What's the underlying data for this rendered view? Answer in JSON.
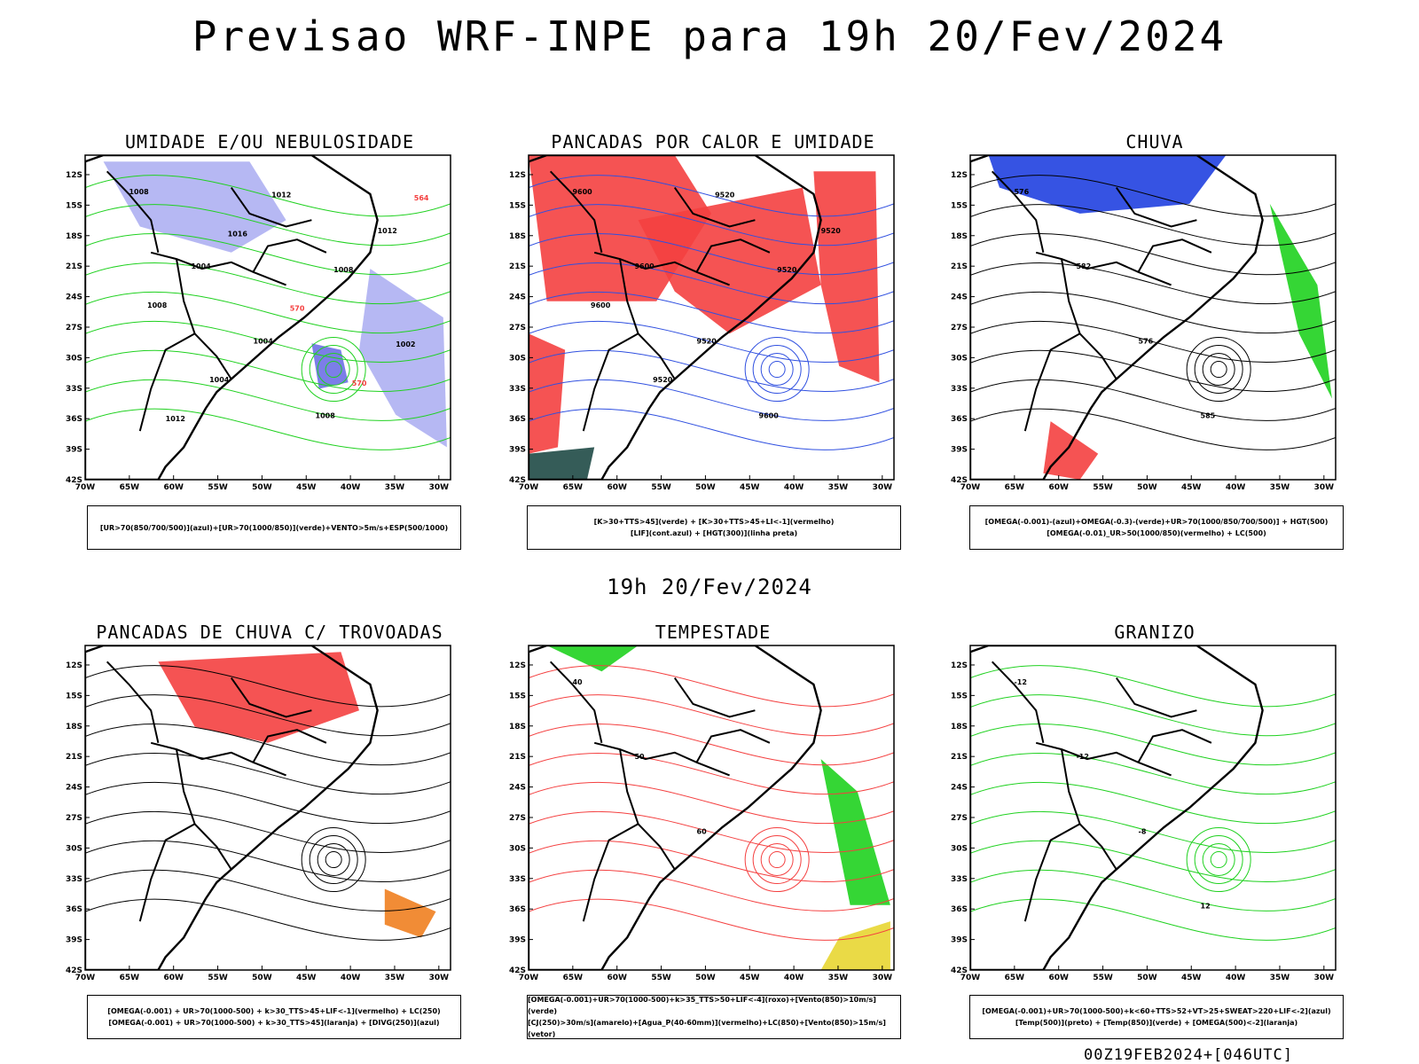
{
  "header": {
    "title": "Previsao WRF-INPE  para 19h 20/Fev/2024",
    "mid_title": "19h 20/Fev/2024",
    "footer": "00Z19FEB2024+[046UTC]"
  },
  "axes": {
    "lat_labels": [
      "12S",
      "15S",
      "18S",
      "21S",
      "24S",
      "27S",
      "30S",
      "33S",
      "36S",
      "39S",
      "42S"
    ],
    "lon_labels": [
      "70W",
      "65W",
      "60W",
      "55W",
      "50W",
      "45W",
      "40W",
      "35W",
      "30W"
    ]
  },
  "panels": [
    {
      "id": "umidade",
      "title": "UMIDADE E/OU NEBULOSIDADE",
      "legend_lines": [
        "[UR>70(850/700/500)](azul)+[UR>70(1000/850)](verde)+VENTO>5m/s+ESP(500/1000)"
      ],
      "contour_labels": [
        "1008",
        "1004",
        "1004",
        "1008",
        "1012",
        "1008",
        "1004",
        "1012",
        "1008",
        "1002",
        "1012",
        "1016",
        "570",
        "570",
        "564"
      ]
    },
    {
      "id": "pancadas-calor",
      "title": "PANCADAS POR CALOR E UMIDADE",
      "legend_lines": [
        "[K>30+TTS>45](verde) + [K>30+TTS>45+LI<-1](vermelho)",
        "[LIF](cont.azul) + [HGT(300)](linha preta)"
      ],
      "contour_labels": [
        "9600",
        "9600",
        "9520",
        "9600",
        "9520",
        "9600",
        "9520",
        "9520",
        "9520"
      ]
    },
    {
      "id": "chuva",
      "title": "CHUVA",
      "legend_lines": [
        "[OMEGA(-0.001)-(azul)+OMEGA(-0.3)-(verde)+UR>70(1000/850/700/500)] + HGT(500)",
        "[OMEGA(-0.01)_UR>50(1000/850)(vermelho) + LC(500)"
      ],
      "contour_labels": [
        "576",
        "582",
        "576",
        "585"
      ]
    },
    {
      "id": "trovoadas",
      "title": "PANCADAS DE CHUVA C/ TROVOADAS",
      "legend_lines": [
        "[OMEGA(-0.001) + UR>70(1000-500) + k>30_TTS>45+LIF<-1](vermelho) + LC(250)",
        "[OMEGA(-0.001) + UR>70(1000-500) + k>30_TTS>45](laranja) + [DIVG(250)](azul)"
      ],
      "contour_labels": []
    },
    {
      "id": "tempestade",
      "title": "TEMPESTADE",
      "legend_lines": [
        "[OMEGA(-0.001)+UR>70(1000-500)+k>35_TTS>50+LIF<-4](roxo)+[Vento(850)>10m/s](verde)",
        "[CJ(250)>30m/s](amarelo)+[Agua_P(40-60mm)](vermelho)+LC(850)+[Vento(850)>15m/s](vetor)"
      ],
      "contour_labels": [
        "40",
        "50",
        "60"
      ]
    },
    {
      "id": "granizo",
      "title": "GRANIZO",
      "legend_lines": [
        "[OMEGA(-0.001)+UR>70(1000-500)+k<60+TTS>52+VT>25+SWEAT>220+LIF<-2](azul)",
        "[Temp(500)](preto) + [Temp(850)](verde) + [OMEGA(500)<-2](laranja)"
      ],
      "contour_labels": [
        "-12",
        "-12",
        "-8",
        "12"
      ]
    }
  ],
  "colors": {
    "blue_fill": "#aeb0f2",
    "green_line": "#1fd11f",
    "red": "#f44040",
    "dark_teal": "#1f4a46",
    "yellow": "#e8d632",
    "orange": "#f08020",
    "blue": "#2040e0",
    "purple": "#8020c0"
  }
}
